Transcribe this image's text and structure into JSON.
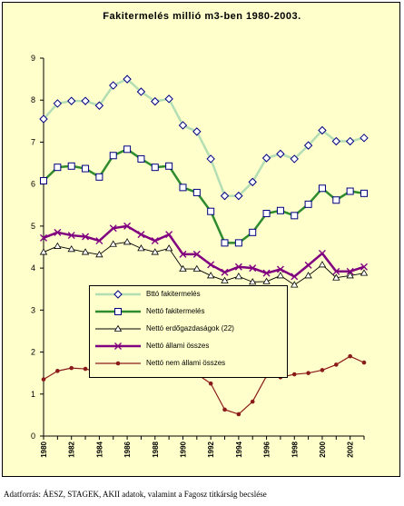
{
  "chart_data": {
    "type": "line",
    "title": "Fakitermelés millió m3-ben 1980-2003.",
    "x": [
      1980,
      1981,
      1982,
      1983,
      1984,
      1985,
      1986,
      1987,
      1988,
      1989,
      1990,
      1991,
      1992,
      1993,
      1994,
      1995,
      1996,
      1997,
      1998,
      1999,
      2000,
      2001,
      2002,
      2003
    ],
    "x_tick_labels": [
      "1980",
      "1982",
      "1984",
      "1986",
      "1988",
      "1990",
      "1992",
      "1994",
      "1996",
      "1998",
      "2000",
      "2002"
    ],
    "y_tick_labels": [
      "0",
      "1",
      "2",
      "3",
      "4",
      "5",
      "6",
      "7",
      "8",
      "9"
    ],
    "ylim": [
      0,
      9
    ],
    "xlim": [
      1980,
      2003
    ],
    "grid": false,
    "legend_position": "center-left",
    "series": [
      {
        "name": "Bttó fakitermelés",
        "color": "#b3deb3",
        "marker": "diamond-open",
        "values": [
          7.55,
          7.92,
          7.98,
          7.98,
          7.87,
          8.35,
          8.5,
          8.2,
          7.97,
          8.03,
          7.4,
          7.25,
          6.6,
          5.72,
          5.72,
          6.05,
          6.62,
          6.72,
          6.6,
          6.92,
          7.28,
          7.02,
          7.02,
          7.1
        ]
      },
      {
        "name": "Nettó fakitermelés",
        "color": "#2e8b2e",
        "marker": "square-open",
        "values": [
          6.08,
          6.4,
          6.43,
          6.37,
          6.17,
          6.68,
          6.83,
          6.6,
          6.4,
          6.43,
          5.92,
          5.8,
          5.35,
          4.6,
          4.6,
          4.85,
          5.3,
          5.37,
          5.25,
          5.52,
          5.9,
          5.62,
          5.83,
          5.78
        ]
      },
      {
        "name": "Nettó erdőgazdaságok (22)",
        "color": "#000000",
        "marker": "triangle-open",
        "values": [
          4.38,
          4.52,
          4.45,
          4.38,
          4.32,
          4.57,
          4.62,
          4.47,
          4.38,
          4.47,
          3.98,
          3.98,
          3.82,
          3.7,
          3.8,
          3.67,
          3.68,
          3.82,
          3.6,
          3.82,
          4.08,
          3.77,
          3.82,
          3.88
        ]
      },
      {
        "name": "Nettó állami összes",
        "color": "#800080",
        "marker": "cross",
        "values": [
          4.72,
          4.85,
          4.78,
          4.75,
          4.65,
          4.95,
          5.0,
          4.8,
          4.65,
          4.8,
          4.33,
          4.33,
          4.08,
          3.9,
          4.03,
          4.0,
          3.88,
          3.97,
          3.8,
          4.07,
          4.35,
          3.92,
          3.92,
          4.03
        ]
      },
      {
        "name": "Nettó nem állami összes",
        "color": "#8b1a1a",
        "marker": "dot",
        "values": [
          1.35,
          1.55,
          1.62,
          1.6,
          1.52,
          1.73,
          1.8,
          1.78,
          1.7,
          1.65,
          1.55,
          1.48,
          1.25,
          0.63,
          0.52,
          0.82,
          1.43,
          1.4,
          1.47,
          1.5,
          1.57,
          1.7,
          1.9,
          1.75
        ]
      }
    ]
  },
  "source_note": "Adatforrás: ÁESZ, STAGEK, AKII adatok, valamint a Fagosz titkárság becslése"
}
